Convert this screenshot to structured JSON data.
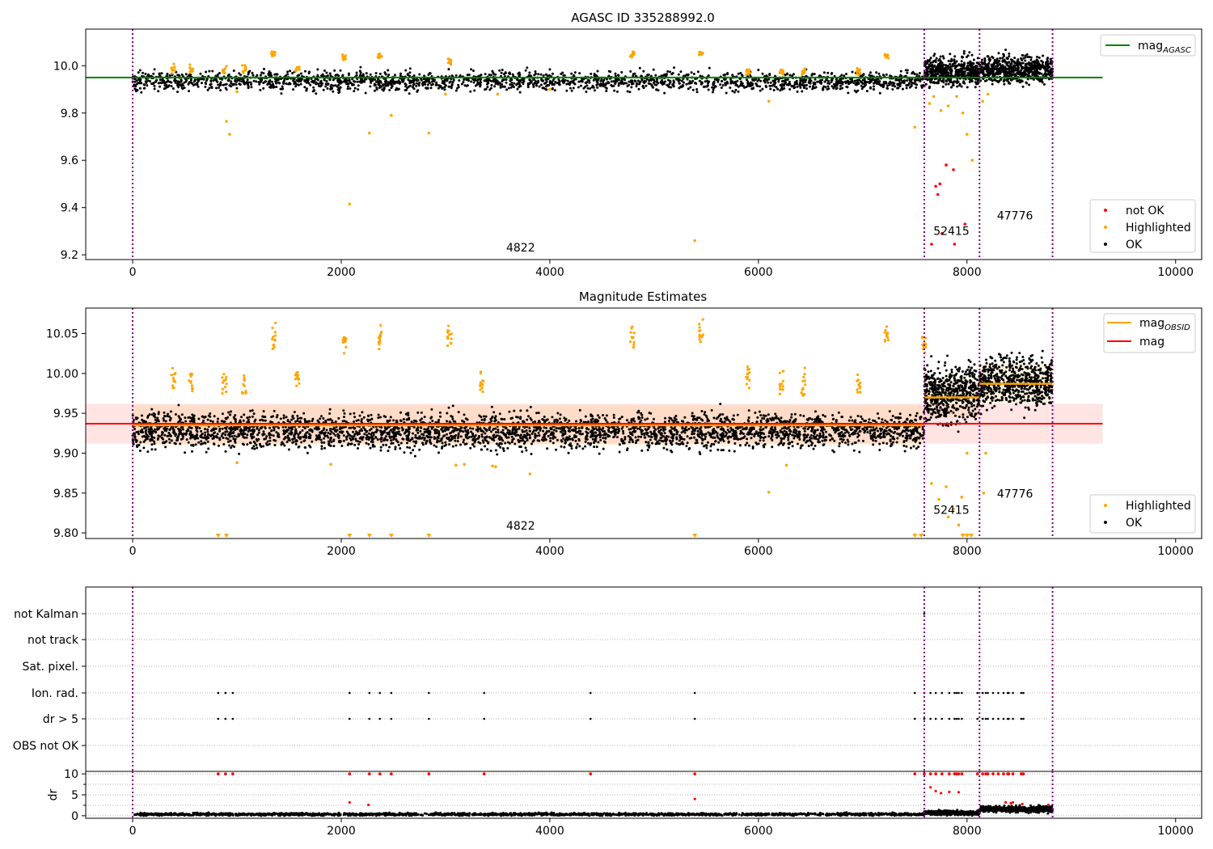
{
  "figure_title": "AGASC ID 335288992.0",
  "colors": {
    "ok": "#000000",
    "highlighted": "#ffa500",
    "not_ok": "#ff0000",
    "agasc_line": "#008000",
    "mag_line": "#ff0000",
    "obsid_line": "#ffa500",
    "vline": "#800080",
    "band": "#ffb3b3"
  },
  "obsid_boundaries": [
    0,
    7590,
    8120,
    8820
  ],
  "obsids": [
    {
      "label": "4822",
      "x": 3720
    },
    {
      "label": "52415",
      "x": 7850
    },
    {
      "label": "47776",
      "x": 8460
    }
  ],
  "chart_data": [
    {
      "type": "scatter",
      "title": "",
      "xlim": [
        -450,
        10250
      ],
      "ylim": [
        9.18,
        10.155
      ],
      "xticks": [
        0,
        2000,
        4000,
        6000,
        8000,
        10000
      ],
      "yticks": [
        9.2,
        9.4,
        9.6,
        9.8,
        10.0
      ],
      "ytick_labels": [
        "9.2",
        "9.4",
        "9.6",
        "9.8",
        "10.0"
      ],
      "reference_line": {
        "name": "mag_AGASC",
        "y": 9.95,
        "x": [
          -450,
          9300
        ]
      },
      "label_y": [
        9.215,
        9.285,
        9.35
      ],
      "legend_top": {
        "position": "top-right",
        "entries": [
          {
            "main": "mag",
            "sub": "AGASC"
          }
        ]
      },
      "legend_bottom": {
        "position": "lower-right",
        "entries": [
          "not OK",
          "Highlighted",
          "OK"
        ]
      },
      "series_ok": [
        {
          "x0": 0,
          "x1": 7590,
          "mean": 9.935,
          "spread": 0.04,
          "n": 2100
        },
        {
          "x0": 7590,
          "x1": 8120,
          "mean": 9.975,
          "spread": 0.06,
          "n": 500
        },
        {
          "x0": 8120,
          "x1": 8820,
          "mean": 9.985,
          "spread": 0.055,
          "n": 600
        }
      ],
      "highlighted": [
        [
          900,
          9.765
        ],
        [
          930,
          9.71
        ],
        [
          2080,
          9.415
        ],
        [
          2270,
          9.715
        ],
        [
          2480,
          9.79
        ],
        [
          2840,
          9.715
        ],
        [
          5390,
          9.26
        ],
        [
          7500,
          9.74
        ],
        [
          7640,
          9.84
        ],
        [
          7680,
          9.87
        ],
        [
          7750,
          9.81
        ],
        [
          7820,
          9.83
        ],
        [
          7900,
          9.87
        ],
        [
          7960,
          9.8
        ],
        [
          8000,
          9.71
        ],
        [
          8050,
          9.6
        ],
        [
          8150,
          9.85
        ],
        [
          8200,
          9.88
        ],
        [
          3000,
          9.88
        ],
        [
          4000,
          9.9
        ],
        [
          6100,
          9.85
        ],
        [
          1000,
          9.89
        ],
        [
          3500,
          9.88
        ]
      ],
      "clusters": [
        [
          1350,
          10.05
        ],
        [
          2030,
          10.04
        ],
        [
          2370,
          10.04
        ],
        [
          3040,
          10.02
        ],
        [
          4790,
          10.05
        ],
        [
          5450,
          10.05
        ],
        [
          7230,
          10.04
        ],
        [
          390,
          9.99
        ],
        [
          560,
          9.985
        ],
        [
          880,
          9.98
        ],
        [
          1070,
          9.985
        ],
        [
          1580,
          9.985
        ],
        [
          5900,
          9.98
        ],
        [
          6220,
          9.975
        ],
        [
          6430,
          9.975
        ],
        [
          6960,
          9.975
        ]
      ],
      "not_ok": [
        [
          7660,
          9.245
        ],
        [
          7700,
          9.49
        ],
        [
          7720,
          9.455
        ],
        [
          7740,
          9.5
        ],
        [
          7800,
          9.58
        ],
        [
          7870,
          9.56
        ],
        [
          7880,
          9.245
        ],
        [
          7980,
          9.33
        ],
        [
          7760,
          9.29
        ]
      ]
    },
    {
      "type": "scatter",
      "title": "Magnitude Estimates",
      "xlim": [
        -450,
        10250
      ],
      "ylim": [
        9.793,
        10.082
      ],
      "xticks": [
        0,
        2000,
        4000,
        6000,
        8000,
        10000
      ],
      "yticks": [
        9.8,
        9.85,
        9.9,
        9.95,
        10.0,
        10.05
      ],
      "ytick_labels": [
        "9.80",
        "9.85",
        "9.90",
        "9.95",
        "10.00",
        "10.05"
      ],
      "mag_line": {
        "name": "mag",
        "y": 9.937,
        "band": [
          9.912,
          9.962
        ],
        "x": [
          -450,
          9300
        ]
      },
      "obsid_lines": [
        {
          "x0": 0,
          "x1": 7590,
          "y": 9.935
        },
        {
          "x0": 7590,
          "x1": 8120,
          "y": 9.97
        },
        {
          "x0": 8120,
          "x1": 8820,
          "y": 9.987
        }
      ],
      "label_y": [
        9.804,
        9.824,
        9.844
      ],
      "legend_top": {
        "position": "top-right",
        "entries": [
          {
            "main": "mag",
            "sub": "OBSID"
          },
          {
            "main": "mag",
            "sub": ""
          }
        ]
      },
      "legend_bottom": {
        "position": "lower-right",
        "entries": [
          "Highlighted",
          "OK"
        ]
      },
      "series_ok": [
        {
          "x0": 0,
          "x1": 7590,
          "mean": 9.928,
          "spread": 0.022,
          "n": 3400
        },
        {
          "x0": 7590,
          "x1": 8120,
          "mean": 9.975,
          "spread": 0.035,
          "n": 550
        },
        {
          "x0": 8120,
          "x1": 8820,
          "mean": 9.99,
          "spread": 0.03,
          "n": 650
        }
      ],
      "highlighted": [
        [
          3100,
          9.885
        ],
        [
          3180,
          9.886
        ],
        [
          3450,
          9.884
        ],
        [
          3480,
          9.883
        ],
        [
          3810,
          9.874
        ],
        [
          1900,
          9.886
        ],
        [
          1000,
          9.888
        ],
        [
          6100,
          9.851
        ],
        [
          6270,
          9.885
        ],
        [
          7660,
          9.862
        ],
        [
          7730,
          9.842
        ],
        [
          7800,
          9.858
        ],
        [
          7820,
          9.82
        ],
        [
          7870,
          9.83
        ],
        [
          7920,
          9.81
        ],
        [
          7950,
          9.845
        ],
        [
          8000,
          9.9
        ],
        [
          8160,
          9.85
        ],
        [
          8180,
          9.9
        ]
      ],
      "clusters": [
        [
          1350,
          10.045
        ],
        [
          2030,
          10.04
        ],
        [
          2370,
          10.045
        ],
        [
          3040,
          10.045
        ],
        [
          4790,
          10.045
        ],
        [
          5450,
          10.05
        ],
        [
          7230,
          10.045
        ],
        [
          390,
          9.995
        ],
        [
          560,
          9.99
        ],
        [
          880,
          9.99
        ],
        [
          1070,
          9.99
        ],
        [
          1580,
          9.99
        ],
        [
          3350,
          9.985
        ],
        [
          5900,
          9.995
        ],
        [
          6220,
          9.99
        ],
        [
          6430,
          9.985
        ],
        [
          6960,
          9.985
        ],
        [
          7590,
          10.04
        ]
      ],
      "clipped": [
        820,
        900,
        2080,
        2270,
        2480,
        2840,
        5390,
        7500,
        7560,
        7960,
        8000,
        8040
      ]
    },
    {
      "type": "scatter",
      "title": "",
      "xlim": [
        -450,
        10250
      ],
      "xticks": [
        0,
        2000,
        4000,
        6000,
        8000,
        10000
      ],
      "flag_rows": [
        "not Kalman",
        "not track",
        "Sat. pixel.",
        "Ion. rad.",
        "dr > 5",
        "OBS not OK"
      ],
      "flag_points": {
        "Ion. rad.": [
          820,
          890,
          960,
          2080,
          2270,
          2370,
          2480,
          2840,
          3370,
          4390,
          5390,
          7500,
          7590,
          7650,
          7700,
          7760,
          7830,
          7880,
          7900,
          7920,
          7950,
          8100,
          8150,
          8180,
          8200,
          8250,
          8300,
          8350,
          8390,
          8400,
          8440,
          8520,
          8540
        ],
        "dr > 5": [
          820,
          890,
          960,
          2080,
          2270,
          2370,
          2480,
          2840,
          3370,
          4390,
          5390,
          7500,
          7590,
          7650,
          7700,
          7760,
          7830,
          7880,
          7900,
          7920,
          7950,
          8100,
          8150,
          8180,
          8200,
          8250,
          8300,
          8350,
          8390,
          8400,
          8440,
          8520,
          8540
        ],
        "not Kalman": [
          7590
        ]
      },
      "dr": {
        "ylabel": "dr",
        "ylim": [
          -0.6,
          10.6
        ],
        "yticks": [
          0,
          5,
          10
        ],
        "ytick_labels": [
          "0",
          "5",
          "10"
        ],
        "baseline": [
          {
            "x0": 0,
            "x1": 7590,
            "mean": 0.35,
            "spread": 0.3,
            "n": 1800
          },
          {
            "x0": 7590,
            "x1": 8120,
            "mean": 0.7,
            "spread": 0.5,
            "n": 400
          },
          {
            "x0": 8120,
            "x1": 8820,
            "mean": 1.6,
            "spread": 0.7,
            "n": 500
          }
        ],
        "clipped": [
          820,
          890,
          960,
          2080,
          2270,
          2370,
          2480,
          2840,
          3370,
          4390,
          5390,
          7500,
          7590,
          7650,
          7700,
          7760,
          7830,
          7880,
          7900,
          7920,
          7950,
          8100,
          8150,
          8180,
          8200,
          8250,
          8300,
          8350,
          8390,
          8400,
          8440,
          8520,
          8540
        ],
        "red_mid": [
          [
            2080,
            3.2
          ],
          [
            2260,
            2.6
          ],
          [
            5390,
            4.0
          ],
          [
            7650,
            6.8
          ],
          [
            7700,
            5.9
          ],
          [
            7750,
            5.4
          ],
          [
            7830,
            5.7
          ],
          [
            7920,
            5.6
          ],
          [
            8370,
            3.2
          ],
          [
            8420,
            3.0
          ],
          [
            8440,
            3.2
          ],
          [
            8530,
            2.8
          ],
          [
            8780,
            2.6
          ]
        ]
      }
    }
  ]
}
